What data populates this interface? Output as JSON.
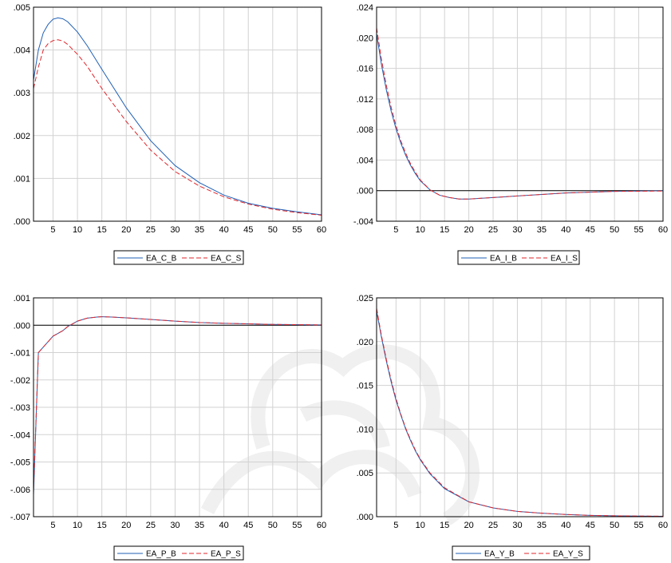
{
  "colors": {
    "series_b": "#1f5fb5",
    "series_s": "#e0252b",
    "grid": "#d2d2d2"
  },
  "chart_data": [
    {
      "type": "line",
      "x": [
        1,
        60
      ],
      "xticks": [
        5,
        10,
        15,
        20,
        25,
        30,
        35,
        40,
        45,
        50,
        55,
        60
      ],
      "yticks": [
        0.0,
        0.001,
        0.002,
        0.003,
        0.004,
        0.005
      ],
      "ytick_labels": [
        ".000",
        ".001",
        ".002",
        ".003",
        ".004",
        ".005"
      ],
      "ylim": [
        0.0,
        0.005
      ],
      "zero_line": false,
      "grid": true,
      "legend": "below",
      "series": [
        {
          "name": "EA_C_B",
          "style": "solid",
          "points": [
            [
              1,
              0.0033
            ],
            [
              2,
              0.004
            ],
            [
              3,
              0.0044
            ],
            [
              4,
              0.0046
            ],
            [
              5,
              0.00472
            ],
            [
              6,
              0.00475
            ],
            [
              7,
              0.00473
            ],
            [
              8,
              0.00466
            ],
            [
              10,
              0.00442
            ],
            [
              12,
              0.0041
            ],
            [
              15,
              0.00355
            ],
            [
              20,
              0.00265
            ],
            [
              25,
              0.00188
            ],
            [
              30,
              0.0013
            ],
            [
              35,
              0.0009
            ],
            [
              40,
              0.00061
            ],
            [
              45,
              0.00042
            ],
            [
              50,
              0.0003
            ],
            [
              55,
              0.00022
            ],
            [
              60,
              0.00015
            ]
          ]
        },
        {
          "name": "EA_C_S",
          "style": "dashed",
          "points": [
            [
              1,
              0.0031
            ],
            [
              2,
              0.0036
            ],
            [
              3,
              0.004
            ],
            [
              4,
              0.00415
            ],
            [
              5,
              0.00422
            ],
            [
              6,
              0.00424
            ],
            [
              7,
              0.00421
            ],
            [
              8,
              0.00413
            ],
            [
              10,
              0.0039
            ],
            [
              12,
              0.00362
            ],
            [
              15,
              0.0031
            ],
            [
              20,
              0.00233
            ],
            [
              25,
              0.00166
            ],
            [
              30,
              0.00116
            ],
            [
              35,
              0.00082
            ],
            [
              40,
              0.00057
            ],
            [
              45,
              0.0004
            ],
            [
              50,
              0.00028
            ],
            [
              55,
              0.0002
            ],
            [
              60,
              0.00014
            ]
          ]
        }
      ]
    },
    {
      "type": "line",
      "x": [
        1,
        60
      ],
      "xticks": [
        5,
        10,
        15,
        20,
        25,
        30,
        35,
        40,
        45,
        50,
        55,
        60
      ],
      "yticks": [
        -0.004,
        0.0,
        0.004,
        0.008,
        0.012,
        0.016,
        0.02,
        0.024
      ],
      "ytick_labels": [
        "-.004",
        ".000",
        ".004",
        ".008",
        ".012",
        ".016",
        ".020",
        ".024"
      ],
      "ylim": [
        -0.004,
        0.024
      ],
      "zero_line": true,
      "grid": true,
      "legend": "below",
      "series": [
        {
          "name": "EA_I_B",
          "style": "solid",
          "points": [
            [
              1,
              0.0205
            ],
            [
              2,
              0.0165
            ],
            [
              3,
              0.0132
            ],
            [
              4,
              0.0104
            ],
            [
              5,
              0.0081
            ],
            [
              6,
              0.0062
            ],
            [
              7,
              0.0046
            ],
            [
              8,
              0.0033
            ],
            [
              9,
              0.0022
            ],
            [
              10,
              0.0013
            ],
            [
              12,
              0.0001
            ],
            [
              14,
              -0.0006
            ],
            [
              16,
              -0.0009
            ],
            [
              18,
              -0.0011
            ],
            [
              20,
              -0.0011
            ],
            [
              25,
              -0.0009
            ],
            [
              30,
              -0.0007
            ],
            [
              35,
              -0.0005
            ],
            [
              40,
              -0.0003
            ],
            [
              45,
              -0.0002
            ],
            [
              50,
              -0.0001
            ],
            [
              55,
              -5e-05
            ],
            [
              60,
              -2e-05
            ]
          ]
        },
        {
          "name": "EA_I_S",
          "style": "dashed",
          "points": [
            [
              1,
              0.0213
            ],
            [
              2,
              0.0172
            ],
            [
              3,
              0.0138
            ],
            [
              4,
              0.0109
            ],
            [
              5,
              0.0085
            ],
            [
              6,
              0.0065
            ],
            [
              7,
              0.0049
            ],
            [
              8,
              0.0035
            ],
            [
              9,
              0.0024
            ],
            [
              10,
              0.0014
            ],
            [
              12,
              0.0001
            ],
            [
              14,
              -0.0006
            ],
            [
              16,
              -0.0009
            ],
            [
              18,
              -0.0011
            ],
            [
              20,
              -0.0011
            ],
            [
              25,
              -0.0009
            ],
            [
              30,
              -0.0007
            ],
            [
              35,
              -0.0005
            ],
            [
              40,
              -0.0003
            ],
            [
              45,
              -0.0002
            ],
            [
              50,
              -0.0001
            ],
            [
              55,
              -8e-05
            ],
            [
              60,
              -5e-05
            ]
          ]
        }
      ]
    },
    {
      "type": "line",
      "x": [
        1,
        60
      ],
      "xticks": [
        5,
        10,
        15,
        20,
        25,
        30,
        35,
        40,
        45,
        50,
        55,
        60
      ],
      "yticks": [
        -0.007,
        -0.006,
        -0.005,
        -0.004,
        -0.003,
        -0.002,
        -0.001,
        0.0,
        0.001
      ],
      "ytick_labels": [
        "-.007",
        "-.006",
        "-.005",
        "-.004",
        "-.003",
        "-.002",
        "-.001",
        ".000",
        ".001"
      ],
      "ylim": [
        -0.007,
        0.001
      ],
      "zero_line": true,
      "grid": true,
      "legend": "below",
      "series": [
        {
          "name": "EA_P_B",
          "style": "solid",
          "points": [
            [
              1,
              -0.0062
            ],
            [
              2,
              -0.001
            ],
            [
              3,
              -0.0008
            ],
            [
              4,
              -0.0006
            ],
            [
              5,
              -0.0004
            ],
            [
              6,
              -0.0003
            ],
            [
              7,
              -0.0002
            ],
            [
              8,
              -5e-05
            ],
            [
              9,
              5e-05
            ],
            [
              10,
              0.00015
            ],
            [
              12,
              0.00026
            ],
            [
              14,
              0.0003
            ],
            [
              15,
              0.00031
            ],
            [
              17,
              0.0003
            ],
            [
              20,
              0.00027
            ],
            [
              25,
              0.00021
            ],
            [
              30,
              0.00015
            ],
            [
              35,
              0.0001
            ],
            [
              40,
              7e-05
            ],
            [
              45,
              5e-05
            ],
            [
              50,
              3e-05
            ],
            [
              55,
              2e-05
            ],
            [
              60,
              1e-05
            ]
          ]
        },
        {
          "name": "EA_P_S",
          "style": "dashed",
          "points": [
            [
              1,
              -0.006
            ],
            [
              2,
              -0.001
            ],
            [
              3,
              -0.0008
            ],
            [
              4,
              -0.0006
            ],
            [
              5,
              -0.0004
            ],
            [
              6,
              -0.0003
            ],
            [
              7,
              -0.0002
            ],
            [
              8,
              -5e-05
            ],
            [
              9,
              5e-05
            ],
            [
              10,
              0.00015
            ],
            [
              12,
              0.00026
            ],
            [
              14,
              0.0003
            ],
            [
              15,
              0.00031
            ],
            [
              17,
              0.0003
            ],
            [
              20,
              0.00027
            ],
            [
              25,
              0.00021
            ],
            [
              30,
              0.00015
            ],
            [
              35,
              0.0001
            ],
            [
              40,
              7e-05
            ],
            [
              45,
              5e-05
            ],
            [
              50,
              3e-05
            ],
            [
              55,
              2e-05
            ],
            [
              60,
              1e-05
            ]
          ]
        }
      ]
    },
    {
      "type": "line",
      "x": [
        1,
        60
      ],
      "xticks": [
        5,
        10,
        15,
        20,
        25,
        30,
        35,
        40,
        45,
        50,
        55,
        60
      ],
      "yticks": [
        0.0,
        0.005,
        0.01,
        0.015,
        0.02,
        0.025
      ],
      "ytick_labels": [
        ".000",
        ".005",
        ".010",
        ".015",
        ".020",
        ".025"
      ],
      "ylim": [
        0.0,
        0.025
      ],
      "zero_line": false,
      "grid": true,
      "legend": "below",
      "series": [
        {
          "name": "EA_Y_B",
          "style": "solid",
          "points": [
            [
              1,
              0.0235
            ],
            [
              2,
              0.0205
            ],
            [
              3,
              0.0178
            ],
            [
              4,
              0.0154
            ],
            [
              5,
              0.0133
            ],
            [
              6,
              0.0116
            ],
            [
              7,
              0.01
            ],
            [
              8,
              0.0087
            ],
            [
              9,
              0.0075
            ],
            [
              10,
              0.0065
            ],
            [
              12,
              0.0049
            ],
            [
              15,
              0.0032
            ],
            [
              20,
              0.0017
            ],
            [
              25,
              0.001
            ],
            [
              30,
              0.0006
            ],
            [
              35,
              0.0004
            ],
            [
              40,
              0.00025
            ],
            [
              45,
              0.00015
            ],
            [
              50,
              0.0001
            ],
            [
              55,
              7e-05
            ],
            [
              60,
              5e-05
            ]
          ]
        },
        {
          "name": "EA_Y_S",
          "style": "dashed",
          "points": [
            [
              1,
              0.0238
            ],
            [
              2,
              0.0207
            ],
            [
              3,
              0.018
            ],
            [
              4,
              0.0156
            ],
            [
              5,
              0.0135
            ],
            [
              6,
              0.0117
            ],
            [
              7,
              0.0101
            ],
            [
              8,
              0.0088
            ],
            [
              9,
              0.0076
            ],
            [
              10,
              0.0066
            ],
            [
              12,
              0.005
            ],
            [
              15,
              0.0033
            ],
            [
              20,
              0.0017
            ],
            [
              25,
              0.001
            ],
            [
              30,
              0.0006
            ],
            [
              35,
              0.0004
            ],
            [
              40,
              0.00025
            ],
            [
              45,
              0.00015
            ],
            [
              50,
              0.0001
            ],
            [
              55,
              7e-05
            ],
            [
              60,
              5e-05
            ]
          ]
        }
      ]
    }
  ]
}
